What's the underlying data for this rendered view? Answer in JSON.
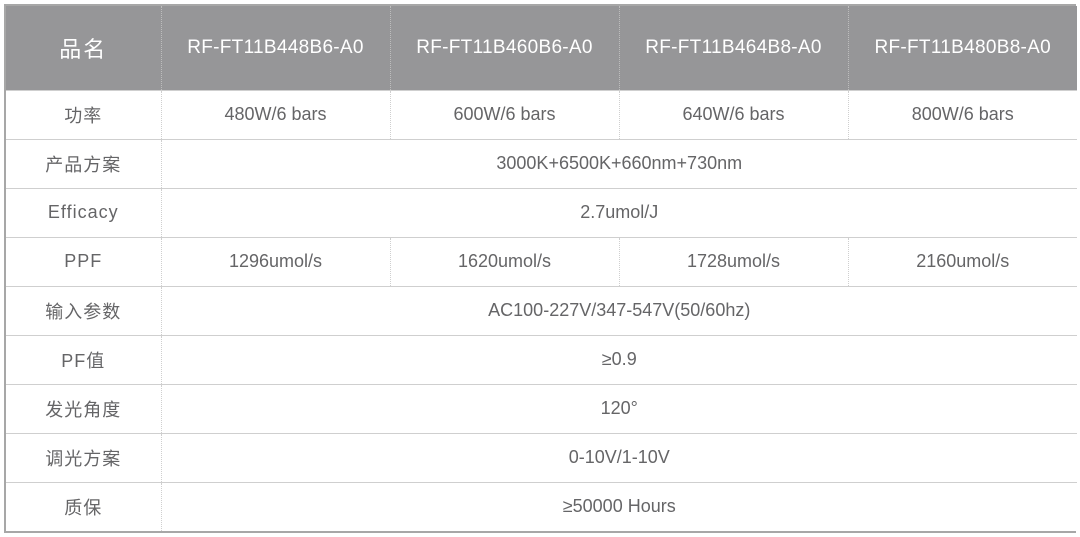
{
  "table": {
    "header_bg": "#969698",
    "header_fg": "#ffffff",
    "body_fg": "#656567",
    "border_color": "#cfcfcf",
    "outer_border": "#a7a7a7",
    "label_header": "品名",
    "models": [
      "RF-FT11B448B6-A0",
      "RF-FT11B460B6-A0",
      "RF-FT11B464B8-A0",
      "RF-FT11B480B8-A0"
    ],
    "rows": [
      {
        "label": "功率",
        "cells": [
          "480W/6 bars",
          "600W/6 bars",
          "640W/6 bars",
          "800W/6 bars"
        ]
      },
      {
        "label": "产品方案",
        "merged": "3000K+6500K+660nm+730nm"
      },
      {
        "label": "Efficacy",
        "merged": "2.7umol/J"
      },
      {
        "label": "PPF",
        "cells": [
          "1296umol/s",
          "1620umol/s",
          "1728umol/s",
          "2160umol/s"
        ]
      },
      {
        "label": "输入参数",
        "merged": "AC100-227V/347-547V(50/60hz)"
      },
      {
        "label": "PF值",
        "merged": "≥0.9"
      },
      {
        "label": "发光角度",
        "merged": "120°"
      },
      {
        "label": "调光方案",
        "merged": "0-10V/1-10V"
      },
      {
        "label": "质保",
        "merged": "≥50000 Hours"
      }
    ]
  }
}
